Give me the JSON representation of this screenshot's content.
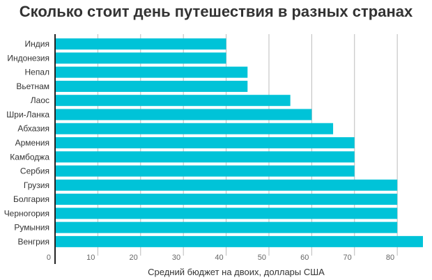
{
  "chart_data": {
    "type": "bar",
    "orientation": "horizontal",
    "title": "Сколько стоит день путешествия в разных странах",
    "xlabel": "Средний бюджет на двоих, доллары США",
    "ylabel": "",
    "categories": [
      "Индия",
      "Индонезия",
      "Непал",
      "Вьетнам",
      "Лаос",
      "Шри-Ланка",
      "Абхазия",
      "Армения",
      "Камбоджа",
      "Сербия",
      "Грузия",
      "Болгария",
      "Черногория",
      "Румыния",
      "Венгрия"
    ],
    "values": [
      40,
      40,
      45,
      45,
      55,
      60,
      65,
      70,
      70,
      70,
      80,
      80,
      80,
      80,
      86
    ],
    "xlim": [
      0,
      86
    ],
    "xticks": [
      0,
      10,
      20,
      30,
      40,
      50,
      60,
      70,
      80
    ],
    "grid": true,
    "legend": "none",
    "colors": {
      "bar": "#00c3d8",
      "grid": "#bbbbbb",
      "axis": "#222222",
      "label": "#333333",
      "tick": "#666666"
    }
  }
}
